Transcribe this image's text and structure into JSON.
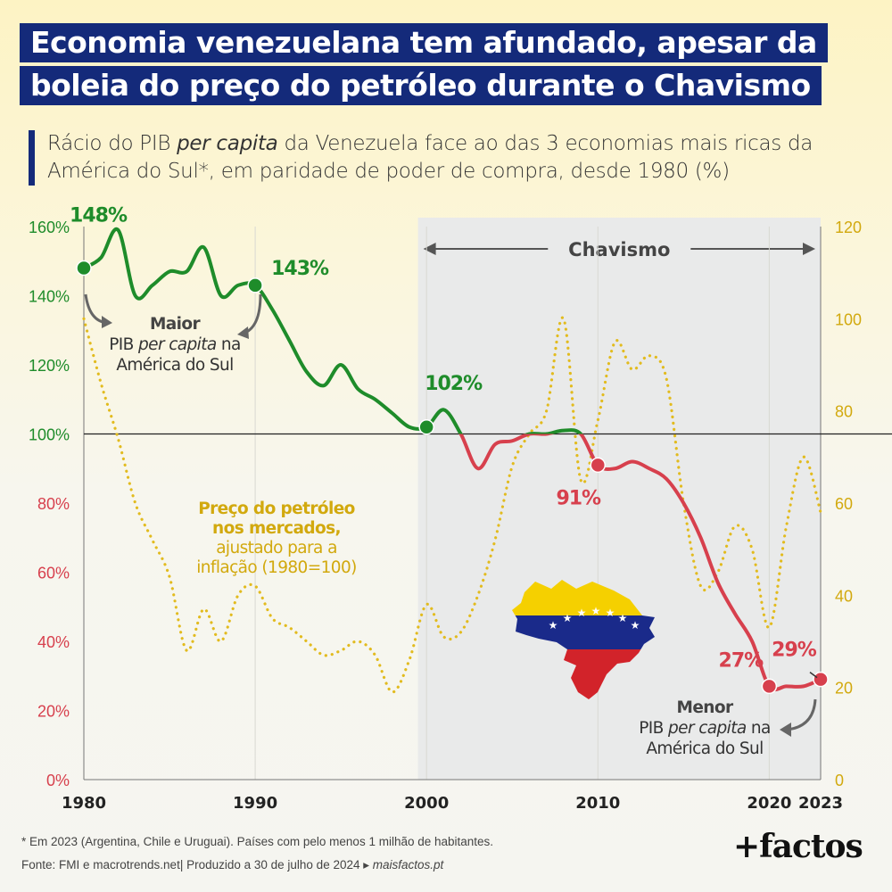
{
  "title": {
    "line1": "Economia venezuelana tem afundado, apesar da",
    "line2": "boleia do preço do petróleo durante o Chavismo"
  },
  "subtitle": {
    "part1": "Rácio do PIB ",
    "italic": "per capita",
    "part2": " da Venezuela face ao das 3 economias mais ricas da América do Sul*, em paridade de poder de compra, desde 1980 (%)"
  },
  "chart_data": {
    "type": "line",
    "x_ticks": [
      "1980",
      "1990",
      "2000",
      "2010",
      "2020",
      "2023"
    ],
    "y_left_ticks": [
      "0%",
      "20%",
      "40%",
      "60%",
      "80%",
      "100%",
      "120%",
      "140%",
      "160%"
    ],
    "y_right_ticks": [
      "0",
      "20",
      "40",
      "60",
      "80",
      "100",
      "120"
    ],
    "ylim_left": [
      0,
      160
    ],
    "ylim_right": [
      0,
      120
    ],
    "xlim": [
      1980,
      2023
    ],
    "shaded_period": {
      "start": 1999.5,
      "end": 2023,
      "label": "Chavismo"
    },
    "series": [
      {
        "name": "Rácio do PIB per capita",
        "axis": "left",
        "color_above": "#1e8c2a",
        "color_below": "#d7404d",
        "x": [
          1980,
          1981,
          1982,
          1983,
          1984,
          1985,
          1986,
          1987,
          1988,
          1989,
          1990,
          1991,
          1992,
          1993,
          1994,
          1995,
          1996,
          1997,
          1998,
          1999,
          2000,
          2001,
          2002,
          2003,
          2004,
          2005,
          2006,
          2007,
          2008,
          2009,
          2010,
          2011,
          2012,
          2013,
          2014,
          2015,
          2016,
          2017,
          2018,
          2019,
          2020,
          2021,
          2022,
          2023
        ],
        "y": [
          148,
          151,
          159,
          140,
          143,
          147,
          147,
          154,
          140,
          143,
          143,
          136,
          127,
          118,
          114,
          120,
          113,
          110,
          106,
          102,
          102,
          107,
          100,
          90,
          97,
          98,
          100,
          100,
          101,
          100,
          91,
          90,
          92,
          90,
          87,
          80,
          70,
          57,
          48,
          40,
          27,
          27,
          27,
          29
        ]
      },
      {
        "name": "Preço do petróleo nos mercados, ajustado para a inflação (1980=100)",
        "axis": "right",
        "color": "#e2bb1e",
        "x": [
          1980,
          1981,
          1982,
          1983,
          1984,
          1985,
          1986,
          1987,
          1988,
          1989,
          1990,
          1991,
          1992,
          1993,
          1994,
          1995,
          1996,
          1997,
          1998,
          1999,
          2000,
          2001,
          2002,
          2003,
          2004,
          2005,
          2006,
          2007,
          2008,
          2009,
          2010,
          2011,
          2012,
          2013,
          2014,
          2015,
          2016,
          2017,
          2018,
          2019,
          2020,
          2021,
          2022,
          2023
        ],
        "y": [
          100,
          86,
          74,
          60,
          52,
          44,
          28,
          37,
          30,
          40,
          42,
          35,
          33,
          30,
          27,
          28,
          30,
          27,
          19,
          26,
          38,
          31,
          32,
          40,
          52,
          68,
          75,
          80,
          100,
          65,
          78,
          95,
          89,
          92,
          87,
          60,
          42,
          45,
          55,
          50,
          33,
          55,
          70,
          58
        ]
      }
    ],
    "annotations": [
      {
        "x": 1980,
        "y": 148,
        "text": "148%"
      },
      {
        "x": 1990,
        "y": 143,
        "text": "143%"
      },
      {
        "x": 2000,
        "y": 102,
        "text": "102%"
      },
      {
        "x": 2010,
        "y": 91,
        "text": "91%"
      },
      {
        "x": 2020,
        "y": 27,
        "text": "27%"
      },
      {
        "x": 2023,
        "y": 29,
        "text": "29%"
      }
    ],
    "notes": {
      "max_bold": "Maior",
      "max_line1_a": "PIB ",
      "max_line1_i": "per capita",
      "max_line1_b": " na",
      "max_line2": "América do Sul",
      "min_bold": "Menor",
      "min_line1_a": "PIB ",
      "min_line1_i": "per capita",
      "min_line1_b": " na",
      "min_line2": "América do Sul",
      "oil_bold1": "Preço do petróleo",
      "oil_bold2": "nos mercados,",
      "oil_line3": "ajustado para a",
      "oil_line4": "inflação (1980=100)"
    }
  },
  "footer": {
    "footnote": "* Em 2023 (Argentina, Chile e Uruguai). Países com pelo menos 1 milhão de habitantes.",
    "source": "Fonte: FMI e macrotrends.net|  Produzido a 30 de julho de 2024 ▸ ",
    "source_link": "maisfactos.pt",
    "brand": "+factos"
  },
  "colors": {
    "navy": "#142a7a",
    "green": "#1e8c2a",
    "red": "#d7404d",
    "oil": "#e2bb1e",
    "shade": "#e9eaea"
  }
}
